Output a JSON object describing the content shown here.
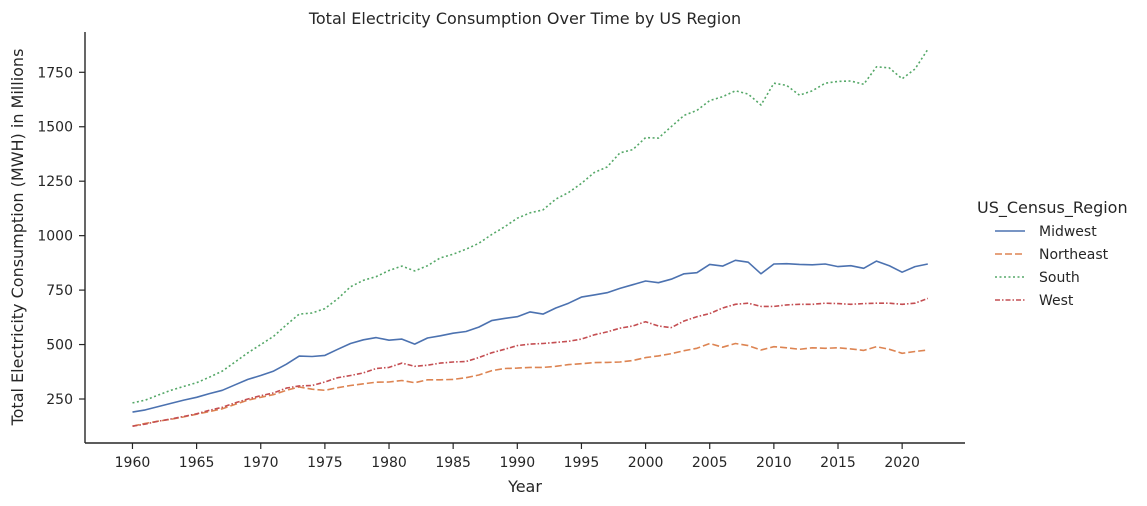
{
  "chart_data": {
    "type": "line",
    "title": "Total Electricity Consumption Over Time by US Region",
    "xlabel": "Year",
    "ylabel": "Total Electricity Consumption (MWH) in Millions",
    "xlim": [
      1956.3,
      2024.9
    ],
    "ylim": [
      48,
      1935
    ],
    "xticks": [
      1960,
      1965,
      1970,
      1975,
      1980,
      1985,
      1990,
      1995,
      2000,
      2005,
      2010,
      2015,
      2020
    ],
    "yticks": [
      250,
      500,
      750,
      1000,
      1250,
      1500,
      1750
    ],
    "grid": false,
    "legend": {
      "title": "US_Census_Region",
      "placement": "right"
    },
    "x": [
      1960,
      1961,
      1962,
      1963,
      1964,
      1965,
      1966,
      1967,
      1968,
      1969,
      1970,
      1971,
      1972,
      1973,
      1974,
      1975,
      1976,
      1977,
      1978,
      1979,
      1980,
      1981,
      1982,
      1983,
      1984,
      1985,
      1986,
      1987,
      1988,
      1989,
      1990,
      1991,
      1992,
      1993,
      1994,
      1995,
      1996,
      1997,
      1998,
      1999,
      2000,
      2001,
      2002,
      2003,
      2004,
      2005,
      2006,
      2007,
      2008,
      2009,
      2010,
      2011,
      2012,
      2013,
      2014,
      2015,
      2016,
      2017,
      2018,
      2019,
      2020,
      2021,
      2022
    ],
    "series": [
      {
        "name": "Midwest",
        "color": "#4c72b0",
        "dash": "solid",
        "values": [
          190,
          200,
          215,
          230,
          245,
          258,
          275,
          290,
          315,
          340,
          358,
          378,
          410,
          447,
          445,
          450,
          478,
          505,
          522,
          532,
          520,
          525,
          502,
          530,
          540,
          552,
          560,
          580,
          610,
          620,
          628,
          650,
          640,
          668,
          690,
          718,
          728,
          738,
          758,
          775,
          792,
          784,
          800,
          825,
          830,
          868,
          860,
          887,
          878,
          825,
          870,
          871,
          868,
          866,
          870,
          858,
          862,
          850,
          883,
          862,
          832,
          858,
          870
        ]
      },
      {
        "name": "Northeast",
        "color": "#dd8452",
        "dash": "dashed",
        "values": [
          125,
          138,
          148,
          157,
          168,
          180,
          192,
          205,
          225,
          245,
          258,
          270,
          290,
          305,
          295,
          290,
          302,
          312,
          320,
          327,
          328,
          335,
          325,
          338,
          338,
          340,
          348,
          360,
          380,
          390,
          392,
          395,
          395,
          400,
          408,
          412,
          417,
          418,
          420,
          427,
          440,
          448,
          458,
          472,
          483,
          505,
          488,
          505,
          495,
          475,
          490,
          485,
          478,
          485,
          483,
          485,
          480,
          473,
          490,
          478,
          460,
          468,
          475
        ]
      },
      {
        "name": "South",
        "color": "#55a868",
        "dash": "dotted",
        "values": [
          232,
          245,
          268,
          290,
          308,
          325,
          350,
          378,
          420,
          462,
          500,
          538,
          590,
          640,
          645,
          665,
          710,
          765,
          795,
          812,
          840,
          860,
          838,
          862,
          898,
          915,
          938,
          965,
          1005,
          1040,
          1080,
          1105,
          1118,
          1168,
          1198,
          1240,
          1290,
          1315,
          1380,
          1395,
          1450,
          1448,
          1500,
          1552,
          1575,
          1620,
          1638,
          1665,
          1650,
          1600,
          1700,
          1690,
          1645,
          1665,
          1700,
          1708,
          1710,
          1695,
          1775,
          1770,
          1720,
          1765,
          1855
        ]
      },
      {
        "name": "West",
        "color": "#c44e52",
        "dash": "dashdot",
        "values": [
          125,
          135,
          148,
          158,
          170,
          182,
          198,
          212,
          232,
          250,
          265,
          278,
          300,
          310,
          312,
          328,
          348,
          358,
          370,
          390,
          395,
          415,
          400,
          405,
          415,
          420,
          422,
          440,
          462,
          478,
          495,
          502,
          505,
          510,
          515,
          525,
          545,
          558,
          575,
          585,
          605,
          585,
          578,
          608,
          628,
          642,
          668,
          685,
          690,
          675,
          675,
          682,
          685,
          685,
          690,
          688,
          685,
          688,
          690,
          690,
          685,
          690,
          712
        ]
      }
    ]
  }
}
